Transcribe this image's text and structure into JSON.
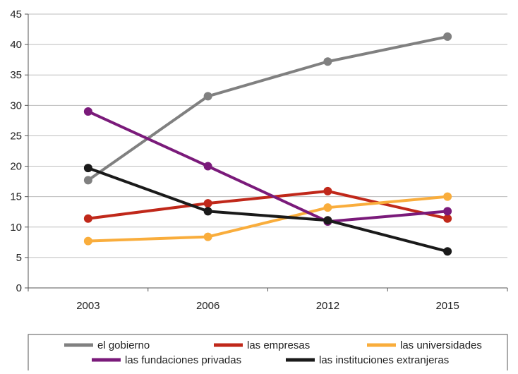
{
  "chart_data": {
    "type": "line",
    "categories": [
      "2003",
      "2006",
      "2012",
      "2015"
    ],
    "ylim": [
      0,
      45
    ],
    "yticks": [
      0,
      5,
      10,
      15,
      20,
      25,
      30,
      35,
      40,
      45
    ],
    "grid": "horizontal",
    "legend_position": "bottom",
    "series": [
      {
        "name": "el gobierno",
        "color": "#808080",
        "values": [
          17.7,
          31.5,
          37.2,
          41.3
        ]
      },
      {
        "name": "las empresas",
        "color": "#c0281a",
        "values": [
          11.4,
          13.9,
          15.9,
          11.4
        ]
      },
      {
        "name": "las universidades",
        "color": "#f9ad3c",
        "values": [
          7.7,
          8.4,
          13.2,
          15.0
        ]
      },
      {
        "name": "las fundaciones privadas",
        "color": "#7a1a7a",
        "values": [
          29.0,
          20.0,
          10.9,
          12.6
        ]
      },
      {
        "name": "las instituciones extranjeras",
        "color": "#1a1a1a",
        "values": [
          19.7,
          12.6,
          11.1,
          6.0
        ]
      }
    ]
  }
}
